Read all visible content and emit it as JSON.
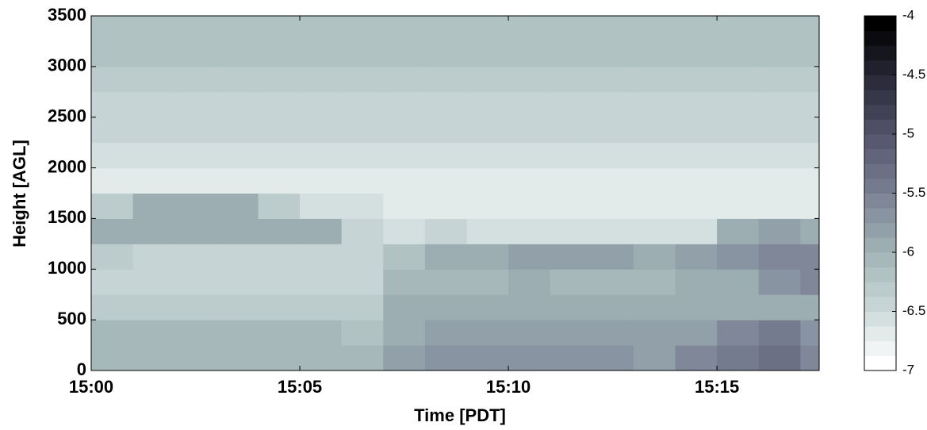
{
  "chart_data": {
    "type": "heatmap",
    "xlabel": "Time [PDT]",
    "ylabel": "Height [AGL]",
    "x_edges": [
      0,
      1,
      2,
      3,
      4,
      5,
      6,
      7,
      8,
      9,
      10,
      11,
      12,
      13,
      14,
      15,
      16,
      17,
      17.45
    ],
    "y_edges": [
      0,
      250,
      500,
      750,
      1000,
      1250,
      1500,
      1750,
      2000,
      2250,
      2500,
      2750,
      3000,
      3250,
      3500
    ],
    "xlim": [
      0,
      17.45
    ],
    "ylim": [
      0,
      3500
    ],
    "xticks": [
      {
        "value": 0,
        "label": "15:00"
      },
      {
        "value": 5,
        "label": "15:05"
      },
      {
        "value": 10,
        "label": "15:10"
      },
      {
        "value": 15,
        "label": "15:15"
      }
    ],
    "yticks": [
      0,
      500,
      1000,
      1500,
      2000,
      2500,
      3000,
      3500
    ],
    "clim": [
      -7,
      -4
    ],
    "cticks": [
      -4,
      -4.5,
      -5,
      -5.5,
      -6,
      -6.5,
      -7
    ],
    "levels": 24,
    "colormap": [
      "#ffffff",
      "#c8d6d6",
      "#9fb2b4",
      "#7a8194",
      "#55556e",
      "#2a2a3a",
      "#000000"
    ],
    "z": [
      [
        -6.1,
        -6.1,
        -6.1,
        -6.1,
        -6.1,
        -6.1,
        -6.1,
        -5.8,
        -5.7,
        -5.7,
        -5.7,
        -5.7,
        -5.7,
        -5.8,
        -5.6,
        -5.5,
        -5.3,
        -5.6
      ],
      [
        -6.1,
        -6.1,
        -6.1,
        -6.1,
        -6.1,
        -6.1,
        -6.2,
        -5.9,
        -5.8,
        -5.8,
        -5.8,
        -5.8,
        -5.8,
        -5.8,
        -5.8,
        -5.6,
        -5.4,
        -5.7
      ],
      [
        -6.3,
        -6.3,
        -6.3,
        -6.3,
        -6.3,
        -6.3,
        -6.3,
        -6.0,
        -6.0,
        -6.0,
        -6.0,
        -6.0,
        -6.0,
        -6.0,
        -6.0,
        -6.0,
        -5.9,
        -5.9
      ],
      [
        -6.5,
        -6.5,
        -6.5,
        -6.5,
        -6.5,
        -6.5,
        -6.5,
        -6.1,
        -6.1,
        -6.1,
        -6.0,
        -6.1,
        -6.1,
        -6.1,
        -6.0,
        -5.9,
        -5.7,
        -5.6
      ],
      [
        -6.3,
        -6.5,
        -6.5,
        -6.5,
        -6.5,
        -6.5,
        -6.4,
        -6.2,
        -6.0,
        -6.0,
        -5.8,
        -5.8,
        -5.8,
        -5.9,
        -5.8,
        -5.7,
        -5.6,
        -5.6
      ],
      [
        -5.9,
        -5.9,
        -5.9,
        -5.9,
        -5.9,
        -5.9,
        -6.5,
        -6.6,
        -6.5,
        -6.6,
        -6.6,
        -6.6,
        -6.6,
        -6.6,
        -6.6,
        -6.0,
        -5.8,
        -5.9
      ],
      [
        -6.3,
        -6.0,
        -5.9,
        -5.9,
        -6.3,
        -6.6,
        -6.6,
        -6.7,
        -6.7,
        -6.7,
        -6.7,
        -6.7,
        -6.7,
        -6.7,
        -6.7,
        -6.7,
        -6.7,
        -6.7
      ],
      [
        -6.7,
        -6.7,
        -6.7,
        -6.7,
        -6.7,
        -6.7,
        -6.7,
        -6.7,
        -6.7,
        -6.7,
        -6.7,
        -6.7,
        -6.7,
        -6.7,
        -6.7,
        -6.7,
        -6.7,
        -6.7
      ],
      [
        -6.6,
        -6.6,
        -6.6,
        -6.6,
        -6.6,
        -6.6,
        -6.6,
        -6.6,
        -6.6,
        -6.6,
        -6.6,
        -6.6,
        -6.6,
        -6.6,
        -6.6,
        -6.6,
        -6.6,
        -6.6
      ],
      [
        -6.5,
        -6.5,
        -6.5,
        -6.5,
        -6.5,
        -6.5,
        -6.5,
        -6.5,
        -6.5,
        -6.5,
        -6.5,
        -6.5,
        -6.5,
        -6.5,
        -6.5,
        -6.5,
        -6.5,
        -6.5
      ],
      [
        -6.4,
        -6.4,
        -6.4,
        -6.4,
        -6.4,
        -6.4,
        -6.4,
        -6.4,
        -6.4,
        -6.4,
        -6.4,
        -6.4,
        -6.4,
        -6.4,
        -6.4,
        -6.4,
        -6.4,
        -6.4
      ],
      [
        -6.3,
        -6.3,
        -6.3,
        -6.3,
        -6.3,
        -6.3,
        -6.3,
        -6.3,
        -6.3,
        -6.3,
        -6.3,
        -6.3,
        -6.3,
        -6.3,
        -6.3,
        -6.3,
        -6.3,
        -6.3
      ],
      [
        -6.2,
        -6.2,
        -6.2,
        -6.2,
        -6.2,
        -6.2,
        -6.2,
        -6.2,
        -6.2,
        -6.2,
        -6.2,
        -6.2,
        -6.2,
        -6.2,
        -6.2,
        -6.2,
        -6.2,
        -6.2
      ],
      [
        -6.2,
        -6.2,
        -6.2,
        -6.2,
        -6.2,
        -6.2,
        -6.2,
        -6.2,
        -6.2,
        -6.2,
        -6.2,
        -6.2,
        -6.2,
        -6.2,
        -6.2,
        -6.2,
        -6.2,
        -6.2
      ]
    ]
  }
}
